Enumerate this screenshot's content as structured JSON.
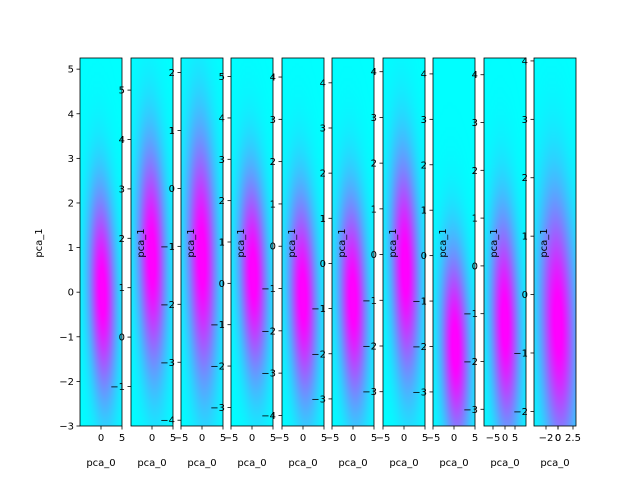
{
  "chart_data": [
    {
      "type": "heatmap",
      "description_of_mark": "density",
      "xlabel": "pca_0",
      "ylabel": "pca_1",
      "xlim": [
        -5,
        5
      ],
      "ylim": [
        -3.0,
        5.25
      ],
      "x_ticks": [
        "0",
        "5"
      ],
      "y_ticks": [
        -3,
        -2,
        -1,
        0,
        1,
        2,
        3,
        4,
        5
      ],
      "density_peak": {
        "x": 0.3,
        "y": 0.0
      },
      "density_spread": {
        "x": 2.2,
        "y": 1.6
      },
      "tilt": -0.08
    },
    {
      "type": "heatmap",
      "xlabel": "pca_0",
      "ylabel": "pca_1",
      "xlim": [
        -5,
        5
      ],
      "ylim": [
        -1.8,
        5.65
      ],
      "x_ticks": [
        "0",
        "5"
      ],
      "y_ticks": [
        -1,
        0,
        1,
        2,
        3,
        4,
        5
      ],
      "density_peak": {
        "x": 0.0,
        "y": 1.6
      },
      "density_spread": {
        "x": 2.3,
        "y": 1.6
      },
      "tilt": -0.07
    },
    {
      "type": "heatmap",
      "xlabel": "pca_0",
      "ylabel": "pca_1",
      "xlim": [
        -5,
        5
      ],
      "ylim": [
        -4.1,
        2.25
      ],
      "x_ticks": [
        "−5",
        "0",
        "5"
      ],
      "y_ticks": [
        -4,
        -3,
        -2,
        -1,
        0,
        1,
        2
      ],
      "density_peak": {
        "x": 0.0,
        "y": -1.2
      },
      "density_spread": {
        "x": 2.4,
        "y": 1.5
      },
      "tilt": -0.08
    },
    {
      "type": "heatmap",
      "xlabel": "pca_0",
      "ylabel": "pca_1",
      "xlim": [
        -5,
        5
      ],
      "ylim": [
        -3.45,
        5.45
      ],
      "x_ticks": [
        "−5",
        "0",
        "5"
      ],
      "y_ticks": [
        -3,
        -2,
        -1,
        0,
        1,
        2,
        3,
        4,
        5
      ],
      "density_peak": {
        "x": 0.3,
        "y": 0.2
      },
      "density_spread": {
        "x": 2.3,
        "y": 1.7
      },
      "tilt": -0.08
    },
    {
      "type": "heatmap",
      "xlabel": "pca_0",
      "ylabel": "pca_1",
      "xlim": [
        -5,
        5
      ],
      "ylim": [
        -4.25,
        4.45
      ],
      "x_ticks": [
        "−5",
        "0",
        "5"
      ],
      "y_ticks": [
        -4,
        -3,
        -2,
        -1,
        0,
        1,
        2,
        3,
        4
      ],
      "density_peak": {
        "x": 0.0,
        "y": -1.2
      },
      "density_spread": {
        "x": 2.3,
        "y": 1.7
      },
      "tilt": -0.08
    },
    {
      "type": "heatmap",
      "xlabel": "pca_0",
      "ylabel": "pca_1",
      "xlim": [
        -5,
        5
      ],
      "ylim": [
        -3.6,
        4.55
      ],
      "x_ticks": [
        "−5",
        "0",
        "5"
      ],
      "y_ticks": [
        -3,
        -2,
        -1,
        0,
        1,
        2,
        3,
        4
      ],
      "density_peak": {
        "x": 0.0,
        "y": -0.8
      },
      "density_spread": {
        "x": 2.3,
        "y": 1.6
      },
      "tilt": -0.08
    },
    {
      "type": "heatmap",
      "xlabel": "pca_0",
      "ylabel": "pca_1",
      "xlim": [
        -5,
        5
      ],
      "ylim": [
        -3.75,
        4.3
      ],
      "x_ticks": [
        "−5",
        "0",
        "5"
      ],
      "y_ticks": [
        -3,
        -2,
        -1,
        0,
        1,
        2,
        3,
        4
      ],
      "density_peak": {
        "x": 0.3,
        "y": -0.3
      },
      "density_spread": {
        "x": 2.3,
        "y": 1.7
      },
      "tilt": -0.08
    },
    {
      "type": "heatmap",
      "xlabel": "pca_0",
      "ylabel": "pca_1",
      "xlim": [
        -5,
        5
      ],
      "ylim": [
        -3.75,
        4.35
      ],
      "x_ticks": [
        "−5",
        "0",
        "5"
      ],
      "y_ticks": [
        -3,
        -2,
        -1,
        0,
        1,
        2,
        3,
        4
      ],
      "density_peak": {
        "x": 0.3,
        "y": -2.0
      },
      "density_spread": {
        "x": 2.3,
        "y": 1.5
      },
      "tilt": -0.08
    },
    {
      "type": "heatmap",
      "xlabel": "pca_0",
      "ylabel": "pca_1",
      "xlim": [
        -5,
        5
      ],
      "ylim": [
        -3.35,
        4.35
      ],
      "x_ticks": [
        "−5",
        "0",
        "5"
      ],
      "y_ticks": [
        -3,
        -2,
        -1,
        0,
        1,
        2,
        3,
        4
      ],
      "density_peak": {
        "x": 0.0,
        "y": -1.2
      },
      "density_spread": {
        "x": 2.3,
        "y": 1.6
      },
      "tilt": -0.08
    },
    {
      "type": "heatmap",
      "xlabel": "pca_0",
      "ylabel": "pca_1",
      "xlim": [
        -4,
        3
      ],
      "ylim": [
        -2.25,
        4.05
      ],
      "x_ticks": [
        "−2",
        "0",
        "2.5",
        "0"
      ],
      "y_ticks": [
        -2,
        -1,
        0,
        1,
        2,
        3,
        4
      ],
      "density_peak": {
        "x": 0.0,
        "y": -0.5
      },
      "density_spread": {
        "x": 2.0,
        "y": 1.5
      },
      "tilt": -0.08
    },
    {
      "type": "heatmap",
      "xlabel": "pca_0",
      "ylabel": "",
      "xlim": [
        -5,
        5
      ],
      "ylim": [
        -2.6,
        4.9
      ],
      "x_ticks": [
        "0",
        "5"
      ],
      "y_ticks": [
        -2,
        -1,
        0,
        1,
        2,
        3,
        4
      ],
      "density_peak": {
        "x": 0.0,
        "y": 1.6
      },
      "density_spread": {
        "x": 2.5,
        "y": 1.9
      },
      "tilt": -0.06
    }
  ],
  "colors": {
    "low": "#00ffff",
    "high": "#ff00ff"
  }
}
